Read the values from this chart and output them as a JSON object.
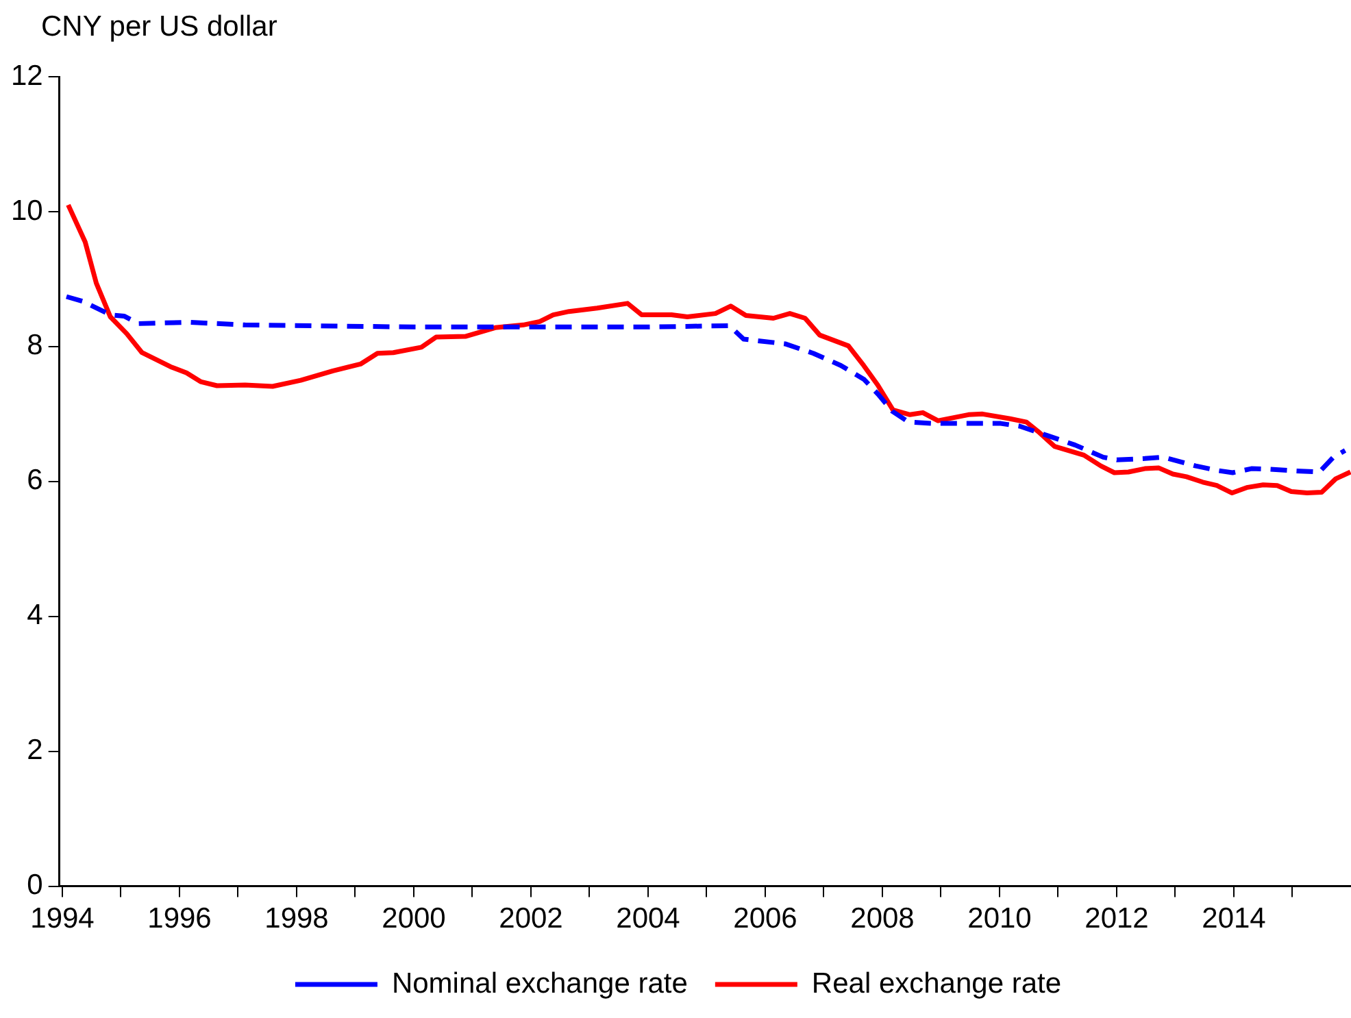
{
  "chart_data": {
    "type": "line",
    "ylabel": "CNY per US dollar",
    "xlim": [
      1993.95,
      2016.0
    ],
    "xticks": [
      1994,
      {
        "value": 1995,
        "label": null
      },
      1996,
      {
        "value": 1997,
        "label": null
      },
      1998,
      {
        "value": 1999,
        "label": null
      },
      2000,
      {
        "value": 2001,
        "label": null
      },
      2002,
      {
        "value": 2003,
        "label": null
      },
      2004,
      {
        "value": 2005,
        "label": null
      },
      2006,
      {
        "value": 2007,
        "label": null
      },
      2008,
      {
        "value": 2009,
        "label": null
      },
      2010,
      {
        "value": 2011,
        "label": null
      },
      2012,
      {
        "value": 2013,
        "label": null
      },
      2014,
      {
        "value": 2015,
        "label": null
      }
    ],
    "ylim": [
      0,
      12
    ],
    "yticks": [
      0,
      2,
      4,
      6,
      8,
      10,
      12
    ],
    "grid": false,
    "legend": "bottom",
    "marker": "none",
    "series": [
      {
        "name": "Nominal exchange rate",
        "color": "#0000ff",
        "line_style": "dashed",
        "x": [
          1994.07,
          1994.35,
          1994.82,
          1995.06,
          1995.3,
          1996.17,
          1997.12,
          2000.0,
          2004.0,
          2005.39,
          2005.63,
          2006.34,
          2006.82,
          2007.29,
          2007.69,
          2007.93,
          2008.17,
          2008.45,
          2008.88,
          2010.02,
          2010.34,
          2010.82,
          2011.29,
          2011.77,
          2012.0,
          2012.48,
          2012.79,
          2013.35,
          2013.74,
          2013.98,
          2014.3,
          2014.62,
          2014.99,
          2015.46,
          2015.7,
          2015.9
        ],
        "values": [
          8.74,
          8.67,
          8.47,
          8.45,
          8.34,
          8.36,
          8.32,
          8.29,
          8.29,
          8.31,
          8.11,
          8.04,
          7.9,
          7.72,
          7.51,
          7.29,
          7.04,
          6.88,
          6.86,
          6.86,
          6.82,
          6.68,
          6.54,
          6.36,
          6.32,
          6.34,
          6.36,
          6.23,
          6.16,
          6.13,
          6.19,
          6.18,
          6.16,
          6.14,
          6.36,
          6.46
        ]
      },
      {
        "name": "Real exchange rate",
        "color": "#ff0000",
        "line_style": "solid",
        "x": [
          1994.1,
          1994.39,
          1994.58,
          1994.82,
          1995.1,
          1995.36,
          1995.85,
          1996.12,
          1996.36,
          1996.64,
          1997.12,
          1997.59,
          1998.07,
          1998.62,
          1999.09,
          1999.38,
          1999.65,
          2000.13,
          2000.38,
          2000.88,
          2001.39,
          2001.87,
          2002.15,
          2002.38,
          2002.65,
          2003.13,
          2003.65,
          2003.89,
          2004.4,
          2004.67,
          2005.15,
          2005.41,
          2005.67,
          2006.14,
          2006.42,
          2006.68,
          2006.93,
          2007.42,
          2007.68,
          2007.92,
          2008.18,
          2008.47,
          2008.69,
          2008.95,
          2009.47,
          2009.71,
          2010.18,
          2010.46,
          2010.66,
          2010.94,
          2011.44,
          2011.73,
          2011.96,
          2012.2,
          2012.48,
          2012.72,
          2012.96,
          2013.19,
          2013.47,
          2013.71,
          2013.97,
          2014.22,
          2014.5,
          2014.74,
          2014.98,
          2015.25,
          2015.5,
          2015.74,
          2015.99
        ],
        "values": [
          10.1,
          9.55,
          8.94,
          8.44,
          8.19,
          7.91,
          7.7,
          7.61,
          7.48,
          7.42,
          7.43,
          7.41,
          7.5,
          7.64,
          7.74,
          7.9,
          7.91,
          7.99,
          8.14,
          8.15,
          8.28,
          8.32,
          8.37,
          8.47,
          8.52,
          8.57,
          8.64,
          8.47,
          8.47,
          8.44,
          8.49,
          8.6,
          8.46,
          8.42,
          8.49,
          8.42,
          8.17,
          8.01,
          7.72,
          7.43,
          7.06,
          6.99,
          7.02,
          6.9,
          6.99,
          7.0,
          6.93,
          6.88,
          6.74,
          6.52,
          6.39,
          6.23,
          6.13,
          6.14,
          6.19,
          6.2,
          6.11,
          6.07,
          5.99,
          5.94,
          5.83,
          5.91,
          5.95,
          5.94,
          5.85,
          5.83,
          5.84,
          6.04,
          6.14
        ]
      }
    ]
  }
}
